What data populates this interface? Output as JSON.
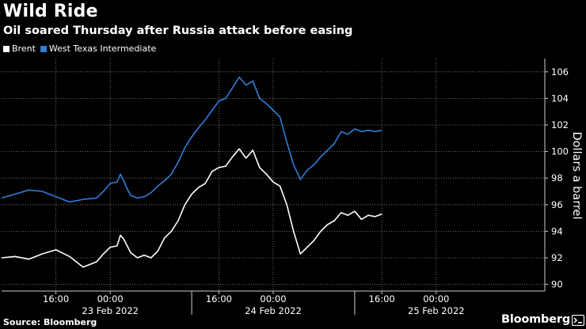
{
  "header": {
    "title": "Wild Ride",
    "subtitle": "Oil soared Thursday after Russia attack before easing"
  },
  "footer": {
    "source": "Source: Bloomberg",
    "brand": "Bloomberg"
  },
  "colors": {
    "background": "#000000",
    "brent": "#ffffff",
    "wti": "#2f7ed8",
    "grid": "#888888"
  },
  "chart_data": {
    "type": "line",
    "title": "Wild Ride",
    "subtitle": "Oil soared Thursday after Russia attack before easing",
    "xlabel": "",
    "ylabel": "Dollars a barrel",
    "ylim": [
      89.5,
      107
    ],
    "y_ticks": [
      90,
      92,
      94,
      96,
      98,
      100,
      102,
      104,
      106
    ],
    "y_axis_side": "right",
    "legend_position": "top-left",
    "grid": true,
    "x_unit": "hours from 23 Feb 2022 00:00",
    "xlim": [
      -16,
      64
    ],
    "x_ticks": [
      {
        "x": -8,
        "label": "16:00"
      },
      {
        "x": 0,
        "label": "00:00"
      },
      {
        "x": 16,
        "label": "16:00"
      },
      {
        "x": 24,
        "label": "00:00"
      },
      {
        "x": 40,
        "label": "16:00"
      },
      {
        "x": 48,
        "label": "00:00"
      }
    ],
    "date_labels": [
      {
        "x": 0,
        "label": "23 Feb 2022"
      },
      {
        "x": 24,
        "label": "24 Feb 2022"
      },
      {
        "x": 48,
        "label": "25 Feb 2022"
      }
    ],
    "day_separators": [
      12,
      36
    ],
    "series": [
      {
        "name": "Brent",
        "color": "#ffffff",
        "x": [
          -16,
          -14,
          -12,
          -10,
          -8,
          -6,
          -4,
          -2,
          -1,
          0,
          1,
          1.5,
          2,
          2.5,
          3,
          4,
          5,
          6,
          7,
          8,
          9,
          10,
          11,
          12,
          13,
          14,
          15,
          16,
          17,
          18,
          19,
          20,
          21,
          22,
          23,
          24,
          25,
          26,
          27,
          28,
          29,
          30,
          31,
          32,
          33,
          34,
          35,
          36,
          37,
          38,
          39,
          40
        ],
        "values": [
          92.0,
          92.1,
          91.9,
          92.3,
          92.6,
          92.1,
          91.3,
          91.7,
          92.3,
          92.8,
          92.9,
          93.7,
          93.4,
          92.9,
          92.4,
          92.0,
          92.2,
          92.0,
          92.5,
          93.5,
          94.0,
          94.8,
          96.0,
          96.8,
          97.3,
          97.6,
          98.5,
          98.8,
          98.9,
          99.6,
          100.2,
          99.5,
          100.1,
          98.8,
          98.3,
          97.7,
          97.4,
          96.0,
          94.0,
          92.3,
          92.8,
          93.3,
          94.0,
          94.5,
          94.8,
          95.4,
          95.2,
          95.5,
          94.9,
          95.2,
          95.1,
          95.3
        ]
      },
      {
        "name": "West Texas Intermediate",
        "color": "#2f7ed8",
        "x": [
          -16,
          -14,
          -12,
          -10,
          -8,
          -6,
          -4,
          -2,
          -1,
          0,
          1,
          1.5,
          2,
          2.5,
          3,
          4,
          5,
          6,
          7,
          8,
          9,
          10,
          11,
          12,
          13,
          14,
          15,
          16,
          17,
          18,
          19,
          20,
          21,
          22,
          23,
          24,
          25,
          26,
          27,
          28,
          29,
          30,
          31,
          32,
          33,
          34,
          35,
          36,
          37,
          38,
          39,
          40
        ],
        "values": [
          96.5,
          96.8,
          97.1,
          97.0,
          96.6,
          96.2,
          96.4,
          96.5,
          97.0,
          97.6,
          97.7,
          98.3,
          97.8,
          97.2,
          96.7,
          96.5,
          96.6,
          96.9,
          97.4,
          97.8,
          98.3,
          99.2,
          100.3,
          101.1,
          101.8,
          102.4,
          103.1,
          103.8,
          104.0,
          104.8,
          105.6,
          105.0,
          105.3,
          104.0,
          103.6,
          103.1,
          102.6,
          100.7,
          99.0,
          97.9,
          98.6,
          99.0,
          99.6,
          100.1,
          100.6,
          101.5,
          101.3,
          101.7,
          101.5,
          101.6,
          101.5,
          101.6
        ]
      }
    ]
  }
}
